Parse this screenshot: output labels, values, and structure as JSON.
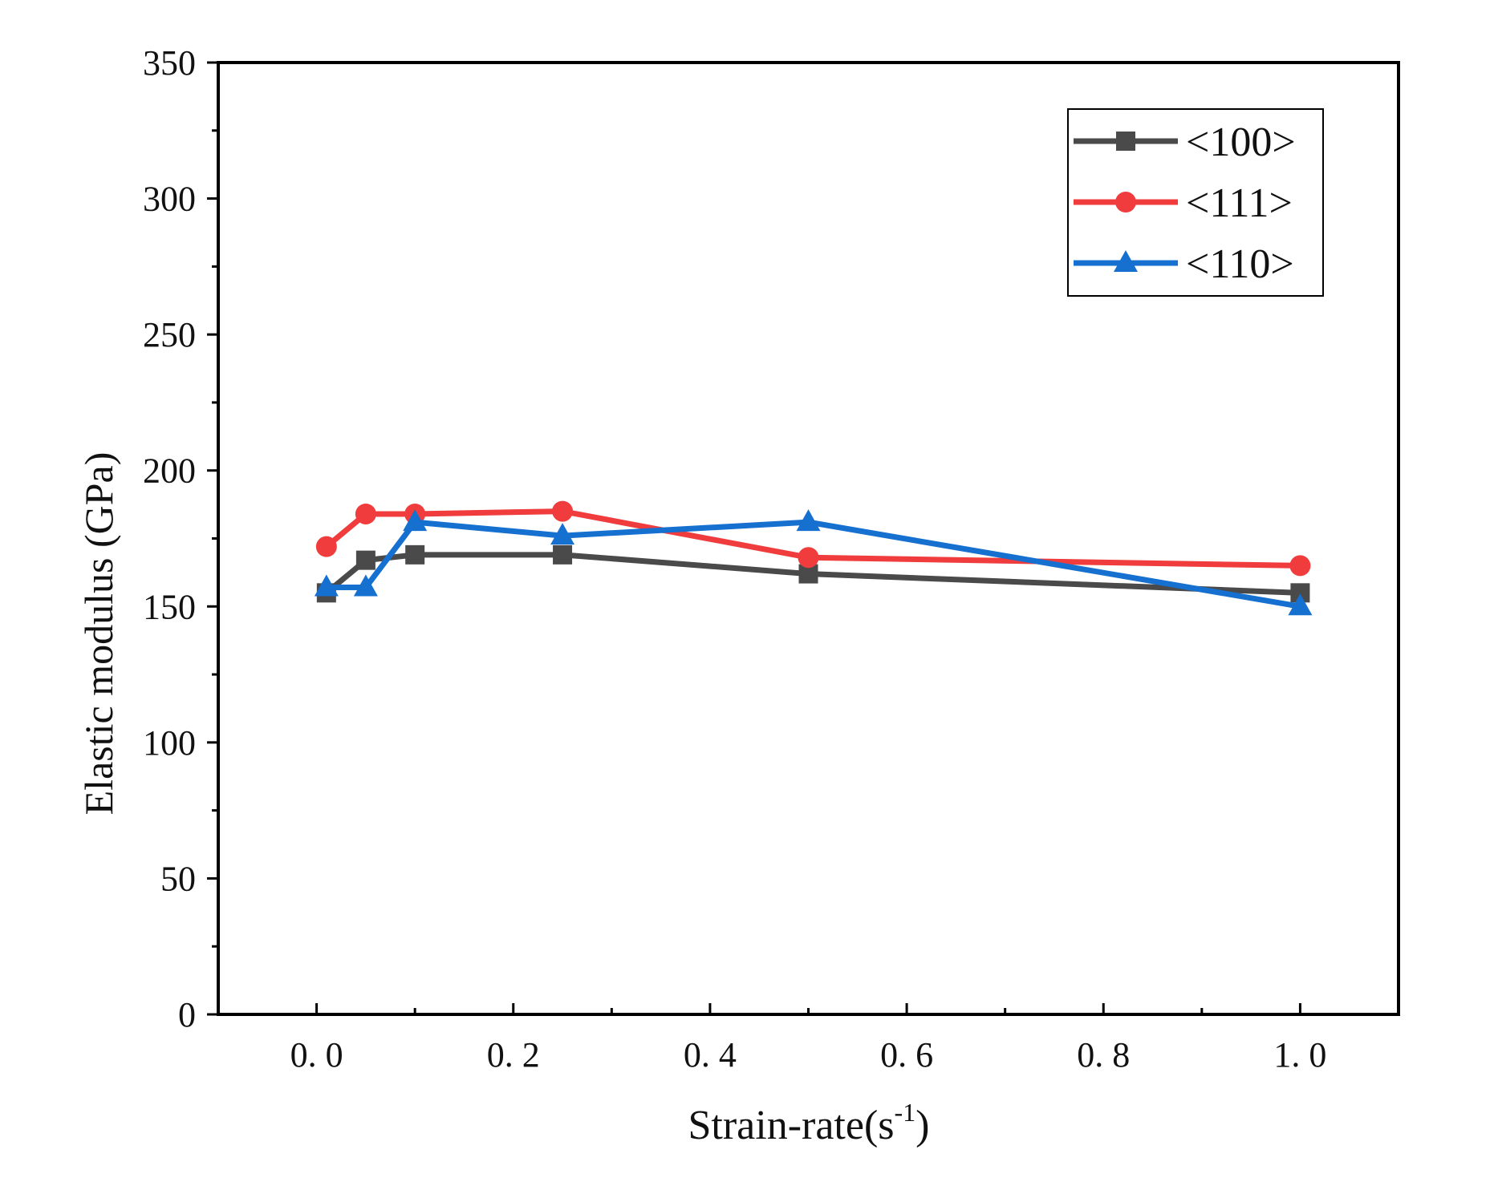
{
  "chart_data": {
    "type": "line",
    "title": "",
    "xlabel": "Strain-rate(s",
    "xlabel_superscript": "-1",
    "xlabel_suffix": ")",
    "ylabel": "Elastic modulus (GPa)",
    "xlim": [
      -0.1,
      1.1
    ],
    "ylim": [
      0,
      350
    ],
    "x_ticks": [
      0.0,
      0.2,
      0.4,
      0.6,
      0.8,
      1.0
    ],
    "x_tick_labels": [
      "0. 0",
      "0. 2",
      "0. 4",
      "0. 6",
      "0. 8",
      "1. 0"
    ],
    "y_ticks": [
      0,
      50,
      100,
      150,
      200,
      250,
      300,
      350
    ],
    "y_tick_labels": [
      "0",
      "50",
      "100",
      "150",
      "200",
      "250",
      "300",
      "350"
    ],
    "grid": false,
    "legend_position": "top-right",
    "series": [
      {
        "name": "<100>",
        "color": "#4a4a4a",
        "marker": "square",
        "x": [
          0.01,
          0.05,
          0.1,
          0.25,
          0.5,
          1.0
        ],
        "y": [
          155,
          167,
          169,
          169,
          162,
          155
        ]
      },
      {
        "name": "<111>",
        "color": "#f03c3c",
        "marker": "circle",
        "x": [
          0.01,
          0.05,
          0.1,
          0.25,
          0.5,
          1.0
        ],
        "y": [
          172,
          184,
          184,
          185,
          168,
          165
        ]
      },
      {
        "name": "<110>",
        "color": "#1570d0",
        "marker": "triangle",
        "x": [
          0.01,
          0.05,
          0.1,
          0.25,
          0.5,
          1.0
        ],
        "y": [
          157,
          157,
          181,
          176,
          181,
          150
        ]
      }
    ]
  }
}
